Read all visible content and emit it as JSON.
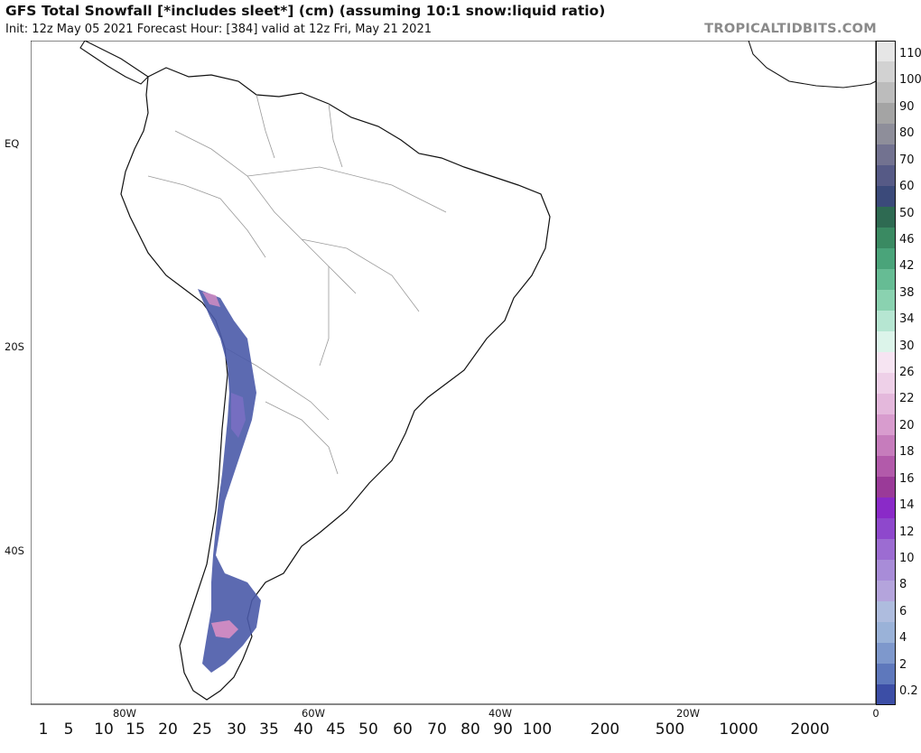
{
  "header": {
    "title": "GFS Total Snowfall [*includes sleet*] (cm) (assuming 10:1 snow:liquid ratio)",
    "subtitle": "Init: 12z May 05 2021   Forecast Hour: [384]   valid at 12z Fri, May 21 2021",
    "brand": "TROPICALTIDBITS.COM"
  },
  "map": {
    "lat_labels": [
      "EQ",
      "20S",
      "40S"
    ],
    "lon_labels": [
      "80W",
      "60W",
      "40W",
      "20W",
      "0"
    ],
    "colors": {
      "land_border": "#111111",
      "inner_border": "#9a9a9a",
      "snow_low": "#4a5aa8",
      "snow_mid": "#7a6fc4",
      "snow_high": "#d88ec4"
    }
  },
  "legend": {
    "labels": [
      "110",
      "100",
      "90",
      "80",
      "70",
      "60",
      "50",
      "46",
      "42",
      "38",
      "34",
      "30",
      "26",
      "22",
      "20",
      "18",
      "16",
      "14",
      "12",
      "10",
      "8",
      "6",
      "4",
      "2",
      "0.2"
    ],
    "colors": [
      "#e6e6e6",
      "#d2d2d2",
      "#bcbcbc",
      "#a4a4a4",
      "#8e8e9a",
      "#727290",
      "#565a86",
      "#3b4a7a",
      "#2e6a52",
      "#3a8a62",
      "#4aa47a",
      "#66bc94",
      "#8ad2b0",
      "#b6e6d2",
      "#dcf4ea",
      "#f6e4f2",
      "#eed0e8",
      "#e4b8dc",
      "#d89cce",
      "#c67cbc",
      "#b25aaa",
      "#9a3a98",
      "#8a2ac8",
      "#8e48cc",
      "#9c6cd2",
      "#a88cd8",
      "#b4a4dc",
      "#aebcde",
      "#9ab2d8",
      "#7e98cc",
      "#5e78bc",
      "#3c4ea6"
    ]
  },
  "bottom_scale": [
    "1",
    "5",
    "10",
    "15",
    "20",
    "25",
    "30",
    "35",
    "40",
    "45",
    "50",
    "60",
    "70",
    "80",
    "90",
    "100",
    "200",
    "500",
    "1000",
    "2000"
  ]
}
